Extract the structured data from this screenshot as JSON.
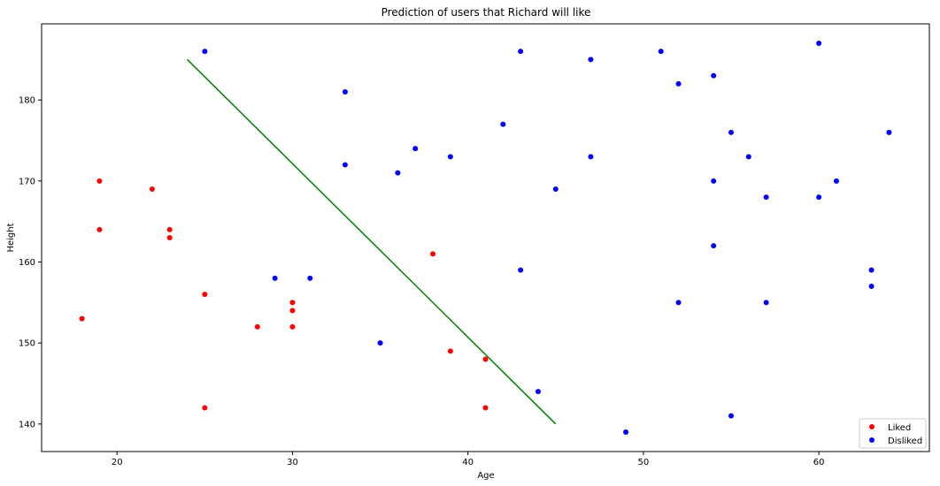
{
  "chart_data": {
    "type": "scatter",
    "title": "Prediction of users that Richard will like",
    "xlabel": "Age",
    "ylabel": "Height",
    "xlim": [
      15.7,
      66.3
    ],
    "ylim": [
      136.6,
      189.4
    ],
    "xticks": [
      20,
      30,
      40,
      50,
      60
    ],
    "yticks": [
      140,
      150,
      160,
      170,
      180
    ],
    "grid": false,
    "legend_position": "bottom-right",
    "series": [
      {
        "name": "Liked",
        "color": "#ff0000",
        "points": [
          [
            18,
            153
          ],
          [
            19,
            170
          ],
          [
            19,
            164
          ],
          [
            22,
            169
          ],
          [
            23,
            164
          ],
          [
            23,
            163
          ],
          [
            25,
            156
          ],
          [
            25,
            142
          ],
          [
            28,
            152
          ],
          [
            30,
            155
          ],
          [
            30,
            154
          ],
          [
            30,
            152
          ],
          [
            38,
            161
          ],
          [
            39,
            149
          ],
          [
            41,
            148
          ],
          [
            41,
            142
          ]
        ]
      },
      {
        "name": "Disliked",
        "color": "#0000ff",
        "points": [
          [
            25,
            186
          ],
          [
            29,
            158
          ],
          [
            31,
            158
          ],
          [
            33,
            181
          ],
          [
            33,
            172
          ],
          [
            35,
            150
          ],
          [
            36,
            171
          ],
          [
            37,
            174
          ],
          [
            39,
            173
          ],
          [
            42,
            177
          ],
          [
            43,
            186
          ],
          [
            43,
            159
          ],
          [
            44,
            144
          ],
          [
            45,
            169
          ],
          [
            47,
            185
          ],
          [
            47,
            173
          ],
          [
            49,
            139
          ],
          [
            51,
            186
          ],
          [
            52,
            182
          ],
          [
            52,
            155
          ],
          [
            54,
            183
          ],
          [
            54,
            170
          ],
          [
            54,
            162
          ],
          [
            55,
            176
          ],
          [
            55,
            141
          ],
          [
            56,
            173
          ],
          [
            57,
            168
          ],
          [
            57,
            155
          ],
          [
            60,
            187
          ],
          [
            60,
            168
          ],
          [
            61,
            170
          ],
          [
            63,
            159
          ],
          [
            63,
            157
          ],
          [
            64,
            176
          ]
        ]
      }
    ],
    "line": {
      "color": "#008000",
      "points": [
        [
          24,
          185
        ],
        [
          45,
          140
        ]
      ]
    }
  }
}
